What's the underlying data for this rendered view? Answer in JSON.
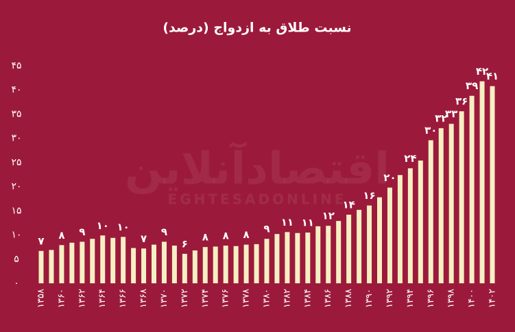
{
  "chart_data": {
    "type": "bar",
    "title": "نسبت طلاق به ازدواج (درصد)",
    "watermark": {
      "fa": "اقتصادآنلاین",
      "en": "EGHTESADONLINE"
    },
    "categories": [
      "۱۳۵۸",
      null,
      "۱۳۶۰",
      null,
      "۱۳۶۲",
      null,
      "۱۳۶۴",
      null,
      "۱۳۶۶",
      null,
      "۱۳۶۸",
      null,
      "۱۳۷۰",
      null,
      "۱۳۷۲",
      null,
      "۱۳۷۴",
      null,
      "۱۳۷۶",
      null,
      "۱۳۷۸",
      null,
      "۱۳۸۰",
      null,
      "۱۳۸۲",
      null,
      "۱۳۸۴",
      null,
      "۱۳۸۶",
      null,
      "۱۳۸۸",
      null,
      "۱۳۹۰",
      null,
      "۱۳۹۲",
      null,
      "۱۳۹۴",
      null,
      "۱۳۹۶",
      null,
      "۱۳۹۸",
      null,
      "۱۴۰۰",
      null,
      "۱۴۰۲"
    ],
    "values": [
      6.7,
      6.9,
      7.9,
      8.4,
      8.6,
      9.2,
      9.9,
      9.4,
      9.6,
      7.3,
      7.2,
      8.0,
      8.6,
      7.8,
      6.1,
      6.8,
      7.5,
      7.6,
      7.8,
      7.7,
      8.0,
      8.1,
      9.2,
      10.2,
      10.6,
      10.4,
      10.5,
      11.8,
      11.9,
      12.9,
      14.2,
      15.2,
      16.1,
      17.8,
      19.8,
      22.4,
      23.8,
      25.4,
      29.6,
      32.1,
      33.0,
      35.6,
      38.8,
      41.8,
      40.8
    ],
    "value_labels": [
      "۷",
      null,
      "۸",
      null,
      "۹",
      null,
      "۱۰",
      null,
      "۱۰",
      null,
      "۷",
      null,
      "۹",
      null,
      "۶",
      null,
      "۸",
      null,
      "۸",
      null,
      "۸",
      null,
      "۹",
      null,
      "۱۱",
      null,
      "۱۱",
      null,
      "۱۲",
      null,
      "۱۴",
      null,
      "۱۶",
      null,
      "۲۰",
      null,
      "۲۴",
      null,
      "۳۰",
      "۳۲",
      "۳۳",
      "۳۶",
      "۳۹",
      "۴۲",
      "۴۱"
    ],
    "color": "#f6efc4",
    "ylim": [
      0,
      45
    ],
    "yticks": [
      {
        "value": 0,
        "label": "۰"
      },
      {
        "value": 5,
        "label": "۵"
      },
      {
        "value": 10,
        "label": "۱۰"
      },
      {
        "value": 15,
        "label": "۱۵"
      },
      {
        "value": 20,
        "label": "۲۰"
      },
      {
        "value": 25,
        "label": "۲۵"
      },
      {
        "value": 30,
        "label": "۳۰"
      },
      {
        "value": 35,
        "label": "۳۵"
      },
      {
        "value": 40,
        "label": "۴۰"
      },
      {
        "value": 45,
        "label": "۴۵"
      }
    ],
    "grid": false
  }
}
